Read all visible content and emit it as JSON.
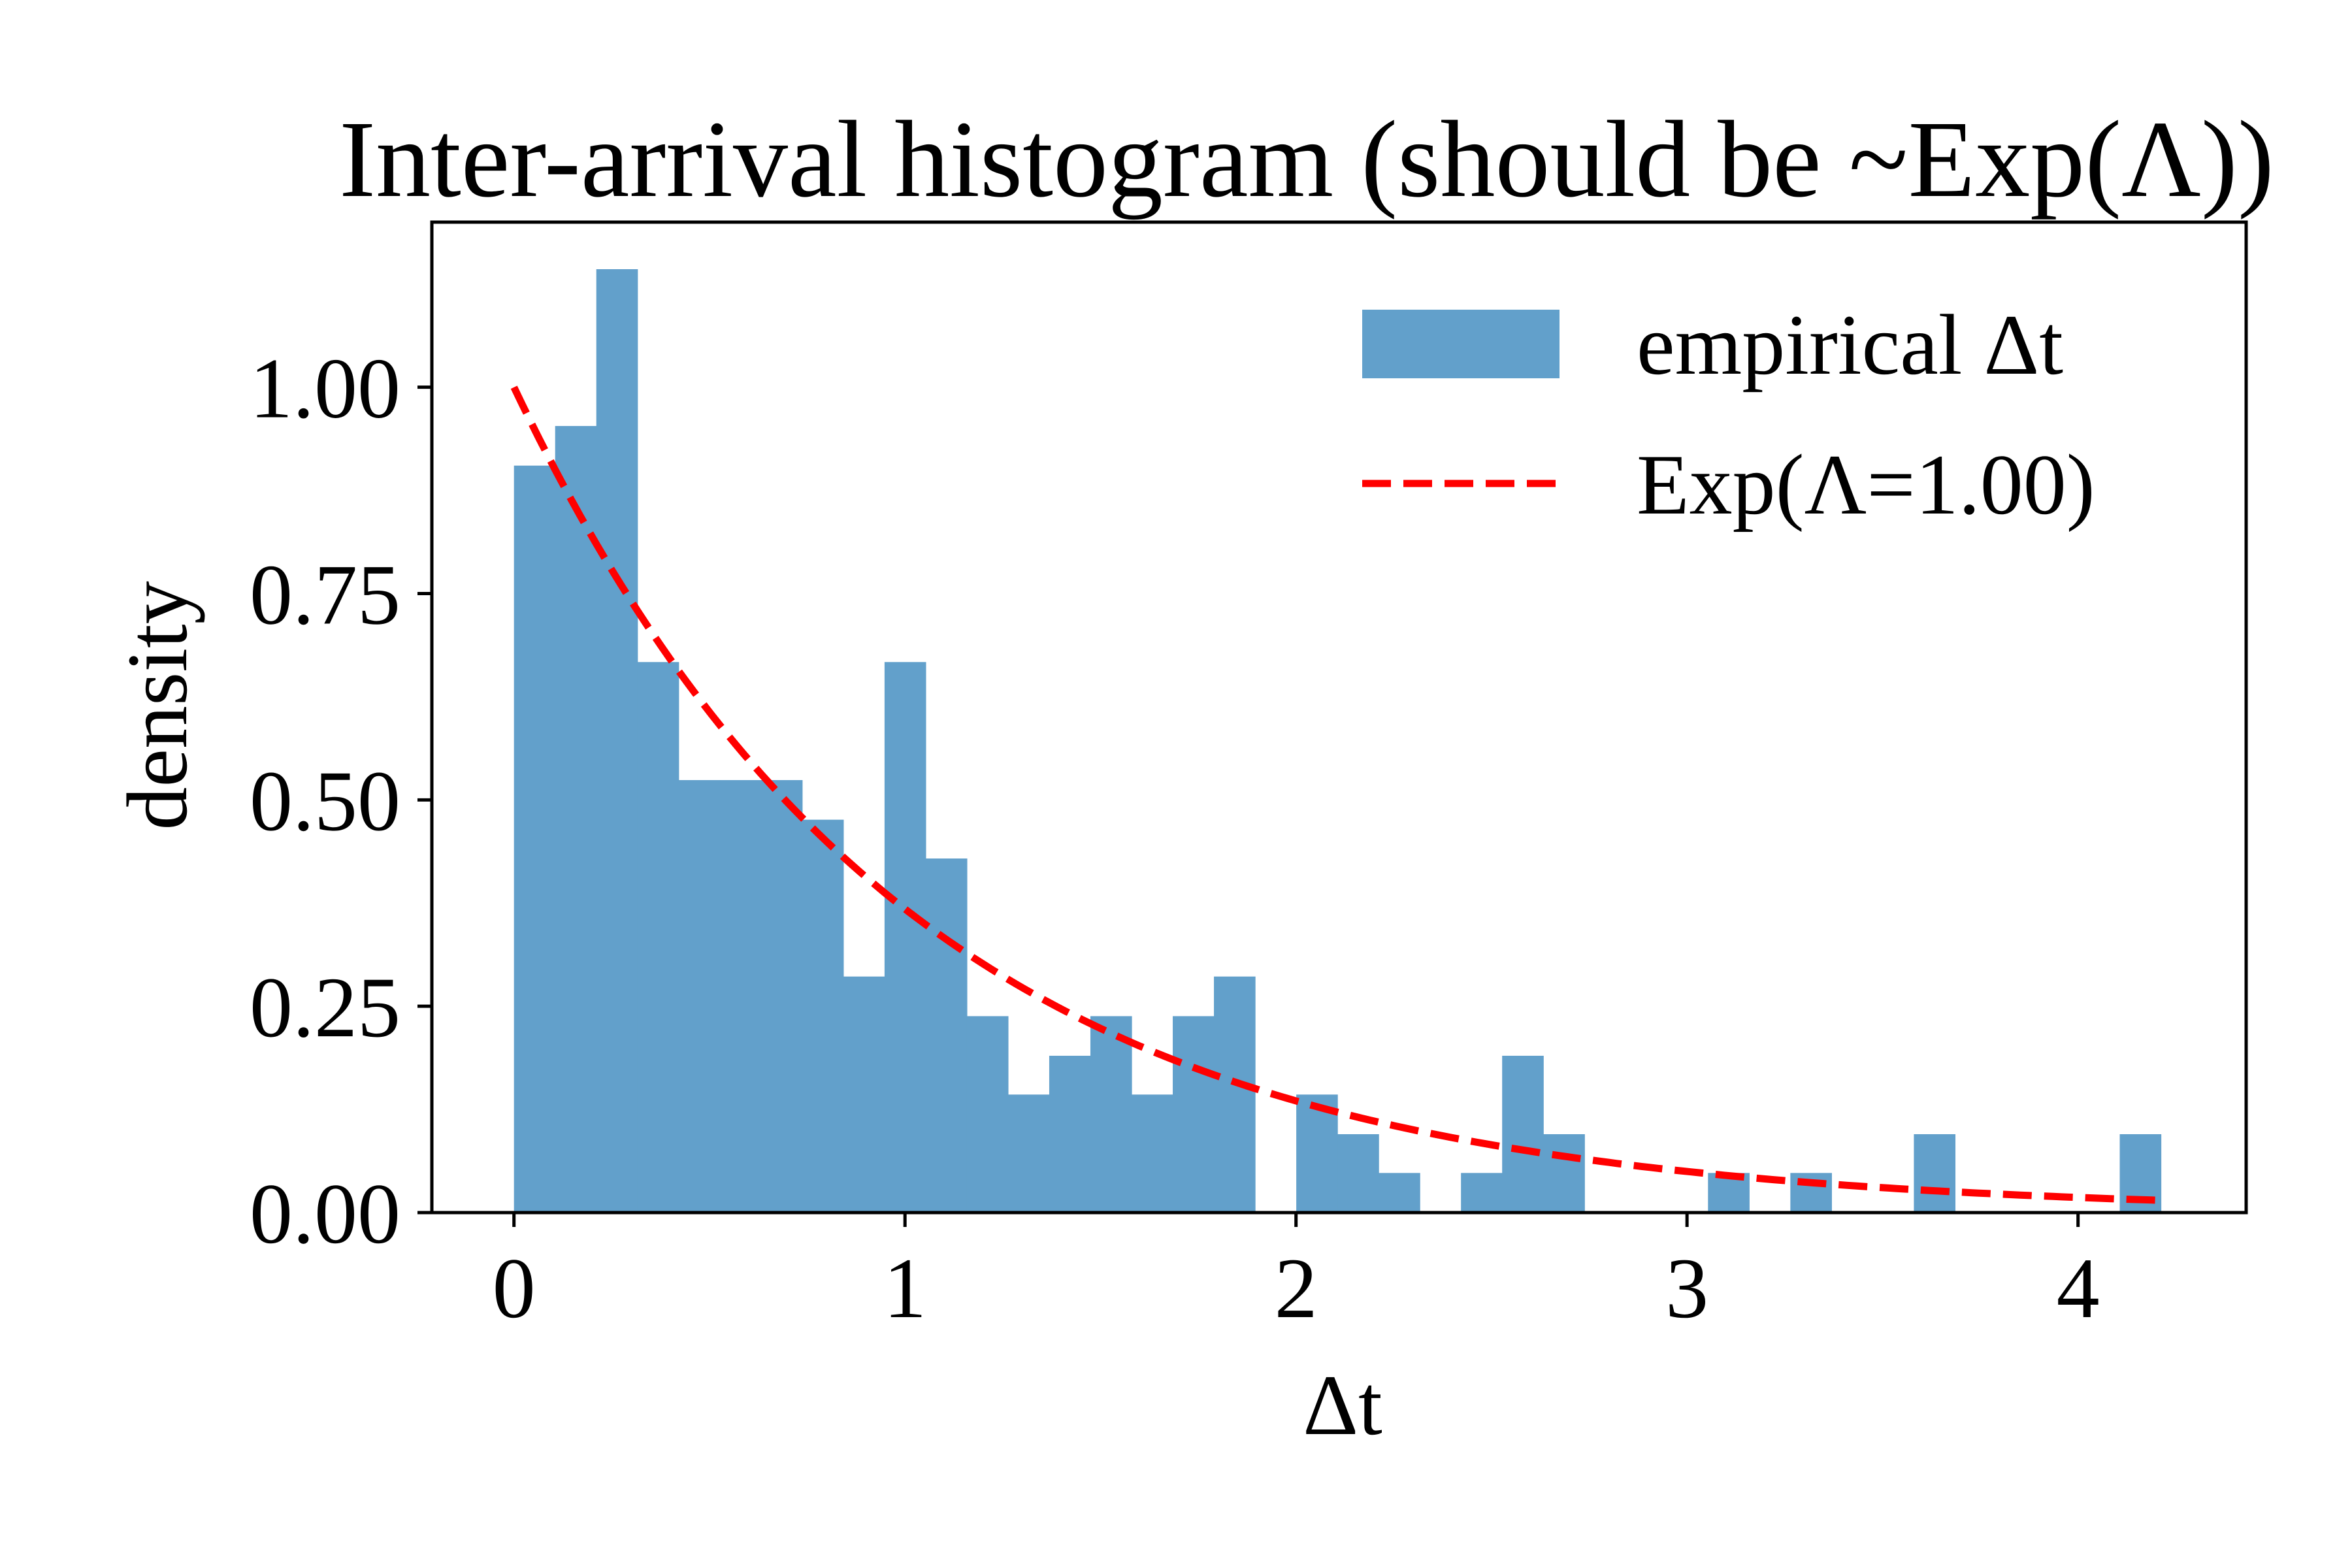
{
  "chart_data": {
    "type": "bar",
    "title": "Inter-arrival histogram (should be ~Exp(Λ))",
    "xlabel": "Δt",
    "ylabel": "density",
    "xlim": [
      -0.21,
      4.43
    ],
    "ylim": [
      0,
      1.2
    ],
    "xticks": [
      0,
      1,
      2,
      3,
      4
    ],
    "xtick_labels": [
      "0",
      "1",
      "2",
      "3",
      "4"
    ],
    "yticks": [
      0,
      0.25,
      0.5,
      0.75,
      1.0
    ],
    "ytick_labels": [
      "0.00",
      "0.25",
      "0.50",
      "0.75",
      "1.00"
    ],
    "grid": false,
    "legend": {
      "position": "upper right",
      "entries": [
        {
          "label": "empirical Δt",
          "kind": "bar",
          "color": "#62a0cb"
        },
        {
          "label": "Exp(Λ=1.00)",
          "kind": "dashed-line",
          "color": "#ff0000"
        }
      ]
    },
    "histogram": {
      "name": "empirical Δt",
      "color": "#62a0cb",
      "bin_start": 0.0,
      "bin_width": 0.1053,
      "values": [
        0.905,
        0.953,
        1.143,
        0.667,
        0.524,
        0.524,
        0.524,
        0.476,
        0.286,
        0.667,
        0.429,
        0.238,
        0.143,
        0.19,
        0.238,
        0.143,
        0.238,
        0.286,
        0.0,
        0.143,
        0.095,
        0.048,
        0.0,
        0.048,
        0.19,
        0.095,
        0.0,
        0.0,
        0.0,
        0.048,
        0.0,
        0.048,
        0.0,
        0.0,
        0.095,
        0.0,
        0.0,
        0.0,
        0.0,
        0.095
      ]
    },
    "curve": {
      "name": "Exp(Λ=1.00)",
      "color": "#ff0000",
      "style": "dashed",
      "function": "exponential pdf",
      "rate": 1.0,
      "x_range": [
        0.0,
        4.21
      ]
    }
  }
}
